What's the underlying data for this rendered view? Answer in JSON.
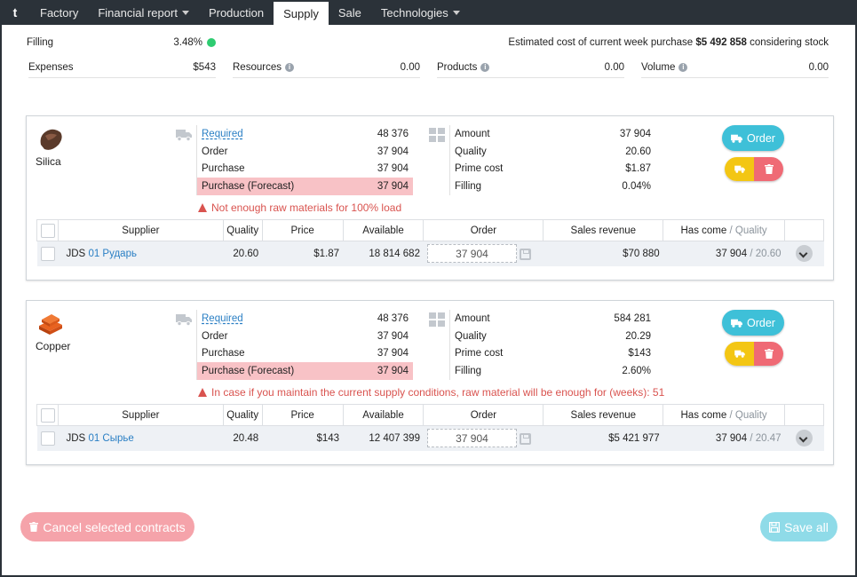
{
  "nav": {
    "logo": "t",
    "tabs": [
      {
        "label": "Factory"
      },
      {
        "label": "Financial report"
      },
      {
        "label": "Production"
      },
      {
        "label": "Supply"
      },
      {
        "label": "Sale"
      },
      {
        "label": "Technologies"
      }
    ],
    "active_tab": "Supply"
  },
  "summary": {
    "filling_label": "Filling",
    "filling_value": "3.48%",
    "estimated_prefix": "Estimated cost of current week purchase",
    "estimated_value": "$5 492 858",
    "estimated_suffix": "considering stock",
    "expenses_label": "Expenses",
    "expenses_value": "$543",
    "resources_label": "Resources",
    "resources_value": "0.00",
    "products_label": "Products",
    "products_value": "0.00",
    "volume_label": "Volume",
    "volume_value": "0.00"
  },
  "labels": {
    "required": "Required",
    "order": "Order",
    "purchase": "Purchase",
    "purchase_forecast": "Purchase (Forecast)",
    "amount": "Amount",
    "quality": "Quality",
    "prime_cost": "Prime cost",
    "filling": "Filling",
    "order_button": "Order"
  },
  "table_headers": {
    "supplier": "Supplier",
    "quality": "Quality",
    "price": "Price",
    "available": "Available",
    "order": "Order",
    "sales_revenue": "Sales revenue",
    "has_come": "Has come",
    "has_come_quality": "/ Quality"
  },
  "materials": [
    {
      "name": "Silica",
      "required": "48 376",
      "order": "37 904",
      "purchase": "37 904",
      "forecast": "37 904",
      "amount": "37 904",
      "quality": "20.60",
      "prime_cost": "$1.87",
      "filling": "0.04%",
      "warning": "Not enough raw materials for 100% load",
      "supplier": {
        "company": "JDS",
        "name": "01 Рударь",
        "quality": "20.60",
        "price": "$1.87",
        "available": "18 814 682",
        "order": "37 904",
        "sales_revenue": "$70 880",
        "has_come": "37 904",
        "has_come_quality": "/ 20.60"
      }
    },
    {
      "name": "Copper",
      "required": "48 376",
      "order": "37 904",
      "purchase": "37 904",
      "forecast": "37 904",
      "amount": "584 281",
      "quality": "20.29",
      "prime_cost": "$143",
      "filling": "2.60%",
      "warning": "In case if you maintain the current supply conditions, raw material will be enough for (weeks): 51",
      "supplier": {
        "company": "JDS",
        "name": "01 Сырье",
        "quality": "20.48",
        "price": "$143",
        "available": "12 407 399",
        "order": "37 904",
        "sales_revenue": "$5 421 977",
        "has_come": "37 904",
        "has_come_quality": "/ 20.47"
      }
    }
  ],
  "footer": {
    "cancel_label": "Cancel selected contracts",
    "save_label": "Save all"
  }
}
